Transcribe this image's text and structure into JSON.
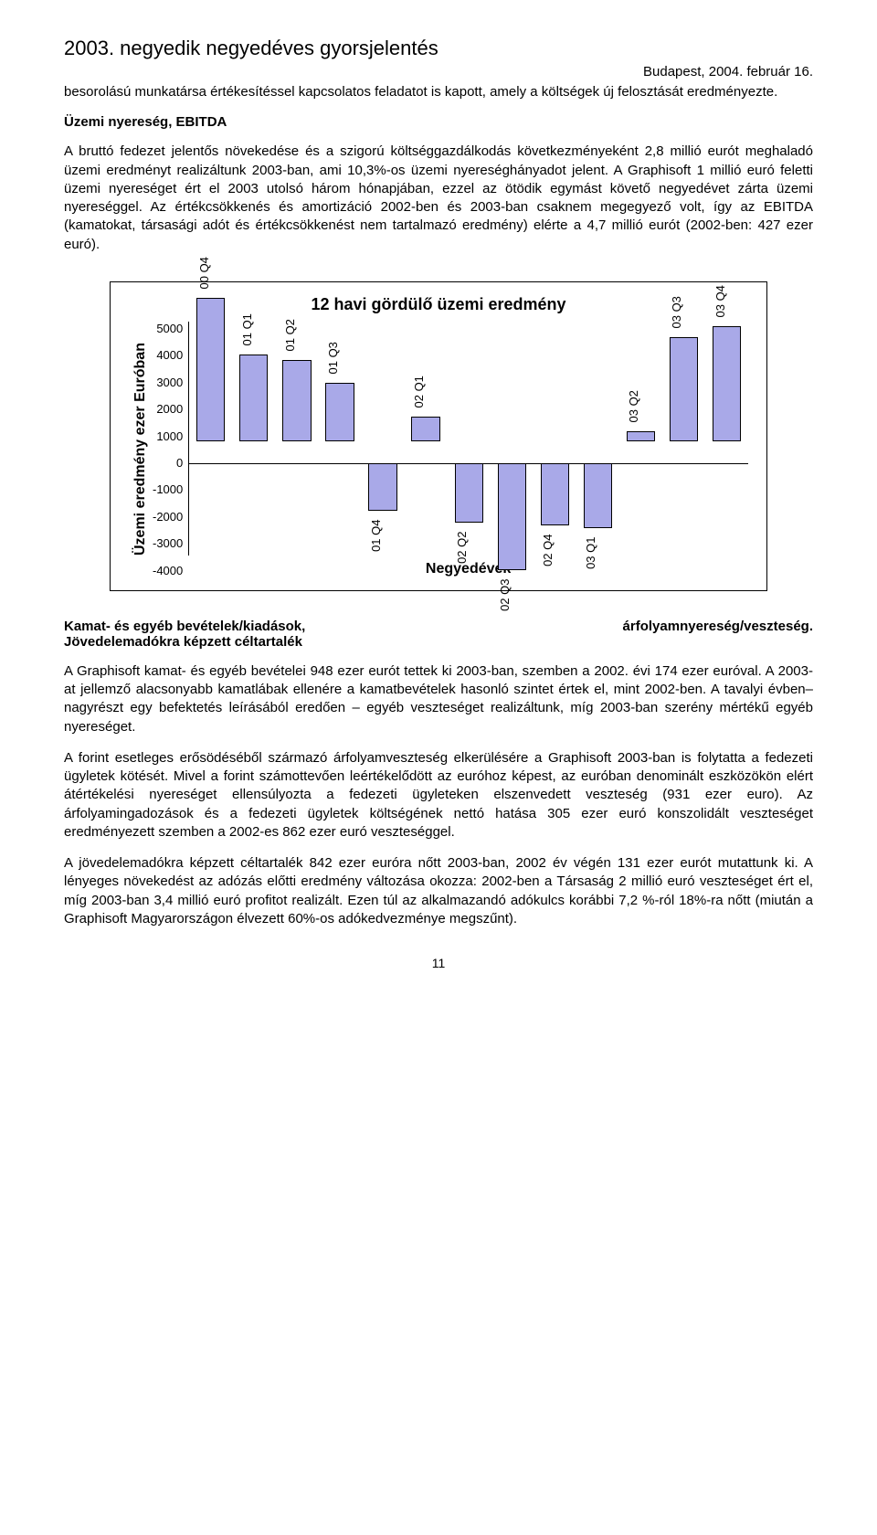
{
  "header": {
    "title": "2003. negyedik negyedéves gyorsjelentés",
    "date": "Budapest, 2004. február 16."
  },
  "paragraphs": {
    "intro": "besorolású munkatársa értékesítéssel kapcsolatos feladatot is kapott, amely a költségek új felosztását eredményezte.",
    "section1_head": "Üzemi nyereség, EBITDA",
    "section1_body": "A bruttó fedezet jelentős növekedése és a szigorú költséggazdálkodás következményeként 2,8 millió eurót meghaladó üzemi eredményt realizáltunk 2003-ban, ami 10,3%-os üzemi nyereséghányadot jelent. A Graphisoft 1 millió euró feletti üzemi nyereséget ért el 2003 utolsó három hónapjában, ezzel az ötödik egymást követő negyedévet zárta üzemi nyereséggel. Az értékcsökkenés és amortizáció 2002-ben és 2003-ban csaknem megegyező volt, így az EBITDA (kamatokat, társasági adót és értékcsökkenést nem tartalmazó eredmény) elérte a 4,7 millió eurót (2002-ben: 427 ezer euró).",
    "section2_left": "Kamat- és egyéb bevételek/kiadások,",
    "section2_right": "árfolyamnyereség/veszteség.",
    "section2_line2": "Jövedelemadókra képzett céltartalék",
    "p2": "A Graphisoft kamat- és egyéb bevételei 948 ezer eurót tettek ki 2003-ban, szemben a 2002. évi 174 ezer euróval. A 2003-at jellemző alacsonyabb kamatlábak ellenére a kamatbevételek hasonló szintet értek el, mint 2002-ben. A tavalyi évben– nagyrészt egy befektetés leírásából eredően – egyéb veszteséget realizáltunk, míg 2003-ban szerény mértékű egyéb nyereséget.",
    "p3": "A forint esetleges erősödéséből származó árfolyamveszteség elkerülésére a Graphisoft 2003-ban is folytatta a fedezeti ügyletek kötését. Mivel a forint számottevően leértékelődött az euróhoz képest, az euróban denominált eszközökön elért átértékelési nyereséget ellensúlyozta a fedezeti ügyleteken elszenvedett veszteség (931 ezer euro). Az árfolyamingadozások és a fedezeti ügyletek költségének nettó hatása 305 ezer euró konszolidált veszteséget eredményezett szemben a 2002-es 862 ezer euró veszteséggel.",
    "p4": "A jövedelemadókra képzett céltartalék 842 ezer euróra nőtt 2003-ban, 2002 év végén 131 ezer eurót mutattunk ki. A lényeges növekedést az adózás előtti eredmény változása okozza: 2002-ben a Társaság 2 millió euró veszteséget ért el, míg 2003-ban 3,4 millió euró profitot realizált. Ezen túl az alkalmazandó adókulcs korábbi 7,2 %-ról 18%-ra nőtt (miután a Graphisoft Magyarországon élvezett 60%-os adókedvezménye megszűnt)."
  },
  "chart": {
    "type": "bar",
    "title": "12 havi gördülő üzemi eredmény",
    "ylabel": "Üzemi eredmény ezer Euróban",
    "xlabel": "Negyedévek",
    "ylim": [
      -4000,
      5000
    ],
    "ytick_step": 1000,
    "yticks": [
      "5000",
      "4000",
      "3000",
      "2000",
      "1000",
      "0",
      "-1000",
      "-2000",
      "-3000",
      "-4000"
    ],
    "background_color": "#ffffff",
    "bar_color": "#a9a9e8",
    "bar_border": "#000000",
    "title_fontsize": 18,
    "label_fontsize": 16,
    "tick_fontsize": 13,
    "categories": [
      "00 Q4",
      "01 Q1",
      "01 Q2",
      "01 Q3",
      "01 Q4",
      "02 Q1",
      "02 Q2",
      "02 Q3",
      "02 Q4",
      "03 Q1",
      "03 Q2",
      "03 Q3",
      "03 Q4"
    ],
    "values": [
      5000,
      3000,
      2800,
      2000,
      -1600,
      800,
      -2000,
      -3700,
      -2100,
      -2200,
      300,
      3600,
      4000
    ]
  },
  "page_number": "11"
}
